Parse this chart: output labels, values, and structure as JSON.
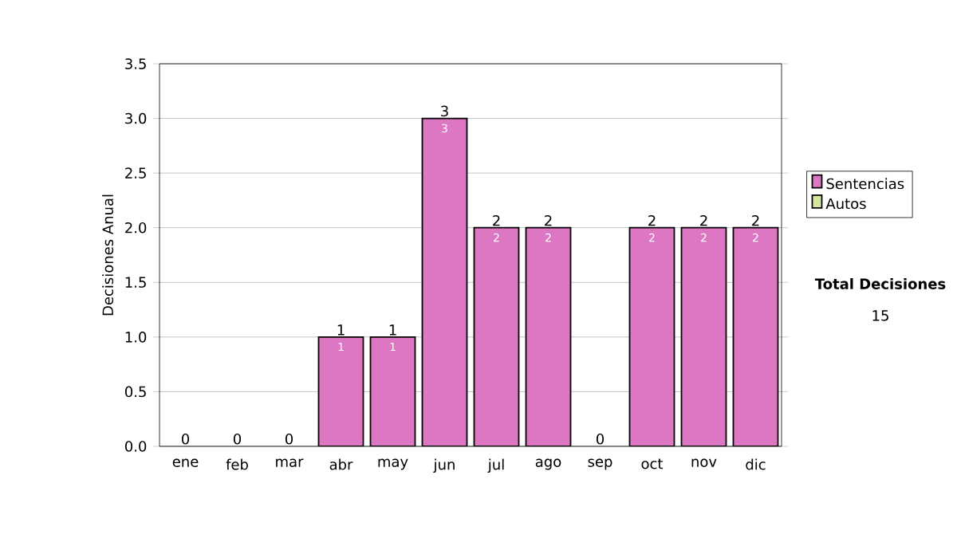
{
  "chart_data": {
    "type": "bar",
    "stacked": true,
    "categories": [
      "ene",
      "feb",
      "mar",
      "abr",
      "may",
      "jun",
      "jul",
      "ago",
      "sep",
      "oct",
      "nov",
      "dic"
    ],
    "series": [
      {
        "name": "Sentencias",
        "color": "#dd77c4",
        "values": [
          0,
          0,
          0,
          1,
          1,
          3,
          2,
          2,
          0,
          2,
          2,
          2
        ],
        "value_labels": [
          null,
          null,
          null,
          "1",
          "1",
          "3",
          "2",
          "2",
          null,
          "2",
          "2",
          "2"
        ]
      },
      {
        "name": "Autos",
        "color": "#d4e6a0",
        "values": [
          0,
          0,
          0,
          0,
          0,
          0,
          0,
          0,
          0,
          0,
          0,
          0
        ]
      }
    ],
    "totals": [
      "0",
      "0",
      "0",
      "1",
      "1",
      "3",
      "2",
      "2",
      "0",
      "2",
      "2",
      "2"
    ],
    "ylabel": "Decisiones Anual",
    "ylim": [
      0,
      3.5
    ],
    "yticks": [
      {
        "value": 0,
        "label": "0.0"
      },
      {
        "value": 0.5,
        "label": "0.5"
      },
      {
        "value": 1,
        "label": "1.0"
      },
      {
        "value": 1.5,
        "label": "1.5"
      },
      {
        "value": 2,
        "label": "2.0"
      },
      {
        "value": 2.5,
        "label": "2.5"
      },
      {
        "value": 3,
        "label": "3.0"
      },
      {
        "value": 3.5,
        "label": "3.5"
      }
    ],
    "grid": "y",
    "legend": "right",
    "annotations": [
      "Total Decisiones",
      "15"
    ]
  }
}
